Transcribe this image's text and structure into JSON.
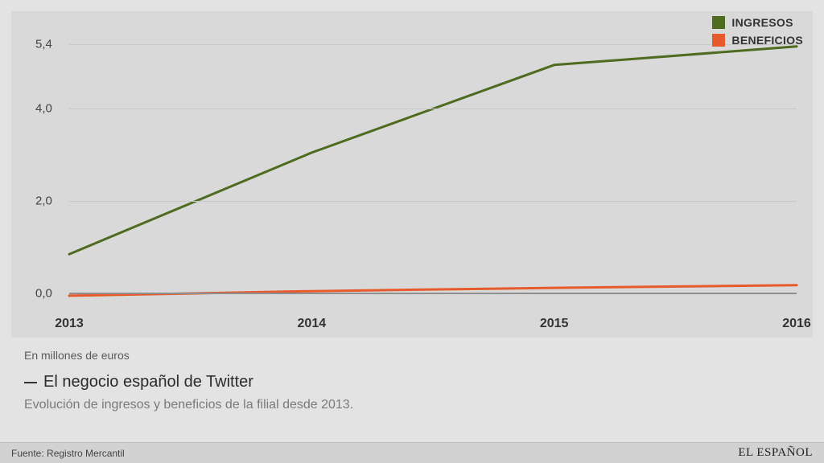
{
  "chart": {
    "type": "line",
    "background_color": "#d9d9d9",
    "page_background": "#e3e3e3",
    "grid_color": "#c8c8c8",
    "baseline_color": "#8f8f8f",
    "x": {
      "categories": [
        "2013",
        "2014",
        "2015",
        "2016"
      ],
      "label_fontsize": 16,
      "label_fontweight": "bold",
      "label_color": "#333333"
    },
    "y": {
      "min": -0.4,
      "max": 5.8,
      "ticks": [
        0.0,
        2.0,
        4.0,
        5.4
      ],
      "tick_labels": [
        "0,0",
        "2,0",
        "4,0",
        "5,4"
      ],
      "label_fontsize": 15,
      "label_color": "#444444"
    },
    "series": [
      {
        "name": "INGRESOS",
        "color": "#4e6b1f",
        "line_width": 3,
        "values": [
          0.85,
          3.05,
          4.95,
          5.35
        ]
      },
      {
        "name": "BENEFICIOS",
        "color": "#e75a2b",
        "line_width": 3,
        "values": [
          -0.05,
          0.05,
          0.12,
          0.18
        ]
      }
    ],
    "legend": {
      "position": "top-right",
      "fontsize": 14,
      "fontweight": "bold"
    }
  },
  "captions": {
    "unit_note": "En millones de euros",
    "title": "El negocio español de Twitter",
    "subtitle": "Evolución de ingresos y beneficios de la filial desde 2013.",
    "title_fontsize": 20,
    "subtitle_fontsize": 16,
    "subtitle_color": "#7a7a7a"
  },
  "footer": {
    "source": "Fuente: Registro Mercantil",
    "brand": "EL ESPAÑOL"
  }
}
